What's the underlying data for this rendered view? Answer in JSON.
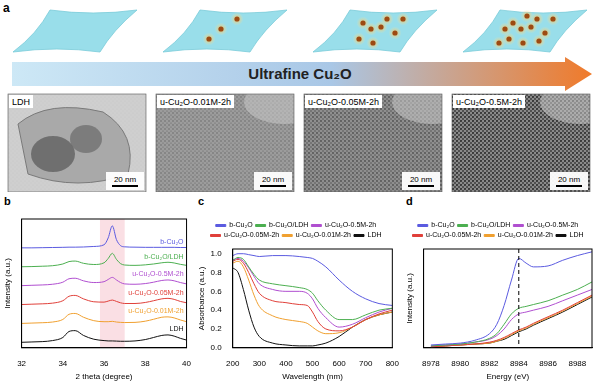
{
  "figure": {
    "panel_a": {
      "label": "a",
      "arrow_text": "Ultrafine Cu₂O",
      "images": [
        {
          "label": "LDH",
          "scale_bar": "20 nm"
        },
        {
          "label": "u-Cu₂O-0.01M-2h",
          "scale_bar": "20 nm"
        },
        {
          "label": "u-Cu₂O-0.05M-2h",
          "scale_bar": "20 nm"
        },
        {
          "label": "u-Cu₂O-0.5M-2h",
          "scale_bar": "20 nm"
        }
      ]
    }
  },
  "chart_data": [
    {
      "panel": "b",
      "type": "line",
      "x_label": "2 theta (degree)",
      "y_label": "Intensity (a.u.)",
      "x": [
        32,
        32.5,
        33,
        33.5,
        34,
        34.3,
        34.6,
        35,
        35.5,
        36,
        36.2,
        36.4,
        36.6,
        36.8,
        37,
        37.5,
        38,
        38.4,
        38.8,
        39.1,
        39.4,
        39.7,
        40
      ],
      "series": [
        {
          "name": "b-Cu₂O",
          "color": "#5b5be0",
          "values": [
            5.82,
            5.82,
            5.83,
            5.84,
            5.85,
            5.86,
            5.86,
            5.87,
            5.9,
            6.0,
            6.4,
            7.1,
            6.3,
            5.95,
            5.88,
            5.86,
            5.85,
            5.85,
            5.85,
            5.85,
            5.85,
            5.84,
            5.84
          ]
        },
        {
          "name": "b-Cu₂O/LDH",
          "color": "#4caf50",
          "values": [
            4.72,
            4.73,
            4.75,
            4.78,
            4.88,
            5.02,
            5.05,
            4.92,
            4.85,
            4.95,
            5.2,
            5.5,
            5.15,
            4.9,
            4.82,
            4.8,
            4.83,
            4.88,
            4.95,
            4.98,
            4.94,
            4.86,
            4.8
          ]
        },
        {
          "name": "u-Cu₂O-0.5M-2h",
          "color": "#b04fd0",
          "values": [
            3.62,
            3.64,
            3.66,
            3.7,
            3.82,
            4.02,
            4.05,
            3.9,
            3.8,
            3.85,
            3.98,
            4.1,
            3.95,
            3.8,
            3.72,
            3.7,
            3.74,
            3.82,
            3.92,
            3.95,
            3.9,
            3.8,
            3.72
          ]
        },
        {
          "name": "u-Cu₂O-0.05M-2h",
          "color": "#e0403a",
          "values": [
            2.52,
            2.54,
            2.56,
            2.6,
            2.74,
            3.0,
            3.05,
            2.85,
            2.68,
            2.66,
            2.72,
            2.78,
            2.7,
            2.62,
            2.58,
            2.58,
            2.64,
            2.74,
            2.85,
            2.88,
            2.82,
            2.7,
            2.62
          ]
        },
        {
          "name": "u-Cu₂O-0.01M-2h",
          "color": "#f0a030",
          "values": [
            1.42,
            1.44,
            1.46,
            1.5,
            1.65,
            1.95,
            2.0,
            1.78,
            1.58,
            1.52,
            1.52,
            1.54,
            1.5,
            1.48,
            1.47,
            1.48,
            1.55,
            1.66,
            1.78,
            1.8,
            1.74,
            1.62,
            1.52
          ]
        },
        {
          "name": "LDH",
          "color": "#111111",
          "values": [
            0.32,
            0.34,
            0.36,
            0.42,
            0.6,
            0.95,
            1.0,
            0.72,
            0.5,
            0.42,
            0.4,
            0.4,
            0.39,
            0.38,
            0.38,
            0.4,
            0.48,
            0.6,
            0.72,
            0.75,
            0.68,
            0.55,
            0.45
          ]
        }
      ],
      "xlim": [
        32,
        40
      ],
      "xticks": [
        32,
        34,
        36,
        38,
        40
      ],
      "ylim": [
        0,
        7.5
      ],
      "tick_labels": "x",
      "grid": false,
      "shaded_range": [
        35.8,
        37.0
      ]
    },
    {
      "panel": "c",
      "type": "line",
      "x_label": "Wavelength (nm)",
      "y_label": "Absorbance (a.u.)",
      "x": [
        200,
        220,
        240,
        260,
        280,
        300,
        350,
        400,
        450,
        480,
        500,
        520,
        550,
        600,
        650,
        700,
        750,
        800
      ],
      "series": [
        {
          "name": "b-Cu₂O",
          "color": "#5b5be0",
          "values": [
            0.98,
            1.0,
            1.0,
            0.99,
            0.98,
            0.97,
            0.98,
            0.98,
            0.97,
            0.96,
            0.95,
            0.92,
            0.86,
            0.72,
            0.6,
            0.52,
            0.47,
            0.45
          ]
        },
        {
          "name": "b-Cu₂O/LDH",
          "color": "#4caf50",
          "values": [
            0.93,
            0.96,
            0.94,
            0.86,
            0.78,
            0.72,
            0.68,
            0.66,
            0.64,
            0.62,
            0.58,
            0.5,
            0.4,
            0.3,
            0.3,
            0.35,
            0.4,
            0.42
          ]
        },
        {
          "name": "u-Cu₂O-0.5M-2h",
          "color": "#b04fd0",
          "values": [
            0.93,
            0.95,
            0.92,
            0.85,
            0.76,
            0.68,
            0.62,
            0.6,
            0.6,
            0.58,
            0.52,
            0.42,
            0.32,
            0.22,
            0.25,
            0.32,
            0.38,
            0.42
          ]
        },
        {
          "name": "u-Cu₂O-0.05M-2h",
          "color": "#e0403a",
          "values": [
            0.92,
            0.94,
            0.9,
            0.8,
            0.68,
            0.58,
            0.5,
            0.48,
            0.46,
            0.45,
            0.38,
            0.28,
            0.2,
            0.18,
            0.22,
            0.3,
            0.36,
            0.4
          ]
        },
        {
          "name": "u-Cu₂O-0.01M-2h",
          "color": "#f0a030",
          "values": [
            0.9,
            0.92,
            0.86,
            0.72,
            0.56,
            0.44,
            0.34,
            0.3,
            0.28,
            0.26,
            0.22,
            0.18,
            0.15,
            0.16,
            0.22,
            0.3,
            0.35,
            0.38
          ]
        },
        {
          "name": "LDH",
          "color": "#111111",
          "values": [
            0.85,
            0.8,
            0.62,
            0.4,
            0.22,
            0.12,
            0.05,
            0.03,
            0.02,
            0.02,
            0.02,
            0.03,
            0.05,
            0.12,
            0.22,
            0.3,
            0.35,
            0.38
          ]
        }
      ],
      "xlim": [
        200,
        800
      ],
      "xticks": [
        200,
        300,
        400,
        500,
        600,
        700,
        800
      ],
      "ylim": [
        0,
        1.05
      ],
      "yticks": [
        {
          "value": 0,
          "label": "0.0"
        },
        0.2,
        0.4,
        0.6,
        0.8,
        {
          "value": 1,
          "label": "1.0"
        }
      ],
      "legend": "top",
      "grid": false
    },
    {
      "panel": "d",
      "type": "line",
      "x_label": "Energy (eV)",
      "y_label": "Intensity (a.u.)",
      "x": [
        8978,
        8979,
        8980,
        8981,
        8982,
        8982.5,
        8983,
        8983.5,
        8984,
        8984.5,
        8985,
        8986,
        8987,
        8988,
        8989
      ],
      "series": [
        {
          "name": "b-Cu₂O",
          "color": "#5b5be0",
          "values": [
            0.03,
            0.04,
            0.05,
            0.08,
            0.15,
            0.25,
            0.45,
            0.72,
            0.95,
            0.9,
            0.86,
            0.87,
            0.93,
            0.98,
            1.02
          ]
        },
        {
          "name": "b-Cu₂O/LDH",
          "color": "#4caf50",
          "values": [
            0.02,
            0.03,
            0.04,
            0.06,
            0.1,
            0.15,
            0.25,
            0.36,
            0.42,
            0.44,
            0.46,
            0.5,
            0.56,
            0.62,
            0.7
          ]
        },
        {
          "name": "u-Cu₂O-0.5M-2h",
          "color": "#b04fd0",
          "values": [
            0.02,
            0.03,
            0.04,
            0.06,
            0.09,
            0.13,
            0.2,
            0.3,
            0.36,
            0.38,
            0.4,
            0.44,
            0.5,
            0.56,
            0.62
          ]
        },
        {
          "name": "u-Cu₂O-0.05M-2h",
          "color": "#e0403a",
          "values": [
            0.01,
            0.02,
            0.03,
            0.04,
            0.06,
            0.08,
            0.11,
            0.15,
            0.19,
            0.22,
            0.26,
            0.33,
            0.4,
            0.48,
            0.56
          ]
        },
        {
          "name": "u-Cu₂O-0.01M-2h",
          "color": "#f0a030",
          "values": [
            0.01,
            0.02,
            0.03,
            0.04,
            0.05,
            0.07,
            0.1,
            0.14,
            0.18,
            0.21,
            0.25,
            0.32,
            0.39,
            0.47,
            0.55
          ]
        },
        {
          "name": "LDH",
          "color": "#111111",
          "values": [
            0.01,
            0.02,
            0.03,
            0.04,
            0.05,
            0.07,
            0.09,
            0.13,
            0.17,
            0.2,
            0.24,
            0.31,
            0.38,
            0.46,
            0.54
          ]
        }
      ],
      "xlim": [
        8977.5,
        8989
      ],
      "xticks": [
        8978,
        8980,
        8982,
        8984,
        8986,
        8988
      ],
      "ylim": [
        0,
        1.05
      ],
      "tick_labels": "x",
      "legend": "top",
      "grid": false,
      "vline": 8984
    }
  ]
}
